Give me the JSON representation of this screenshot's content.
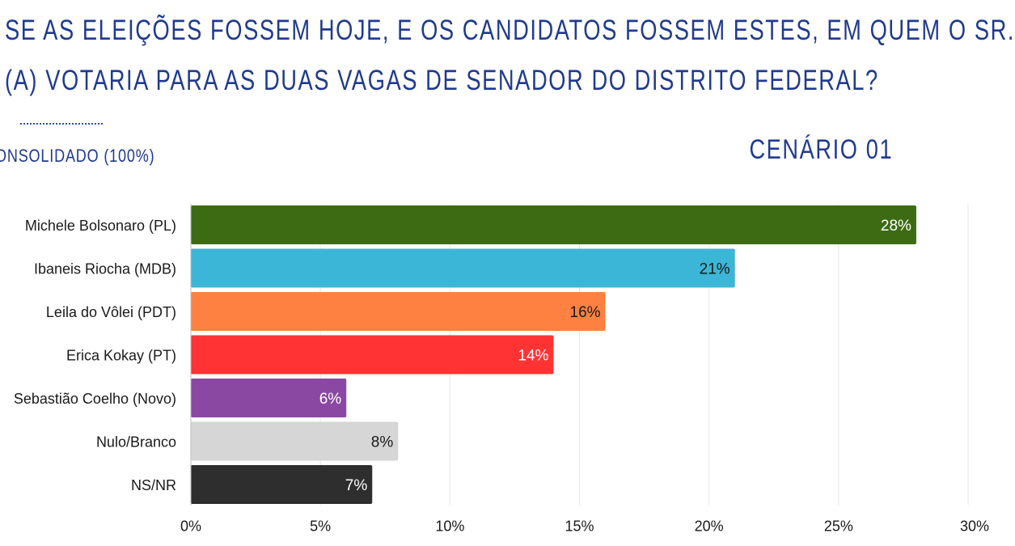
{
  "header": {
    "question_line1": "SE AS ELEIÇÕES FOSSEM HOJE, E OS CANDIDATOS FOSSEM ESTES, EM QUEM O SR.",
    "question_line2": "(A) VOTARIA PARA AS DUAS VAGAS DE SENADOR DO DISTRITO FEDERAL?",
    "subtitle": "ONSOLIDADO (100%)",
    "scenario": "CENÁRIO 01"
  },
  "chart_data": {
    "type": "bar",
    "orientation": "horizontal",
    "categories": [
      "Michele Bolsonaro (PL)",
      "Ibaneis Riocha (MDB)",
      "Leila do Vôlei (PDT)",
      "Erica Kokay (PT)",
      "Sebastião Coelho (Novo)",
      "Nulo/Branco",
      "NS/NR"
    ],
    "values": [
      28,
      21,
      16,
      14,
      6,
      8,
      7
    ],
    "value_labels": [
      "28%",
      "21%",
      "16%",
      "14%",
      "6%",
      "8%",
      "7%"
    ],
    "colors": [
      "#3d6b13",
      "#3bb6d6",
      "#ff8142",
      "#ff3333",
      "#8a48a3",
      "#d6d6d6",
      "#2e2e2e"
    ],
    "label_colors": [
      "#ffffff",
      "#1a1a1a",
      "#1a1a1a",
      "#ffffff",
      "#ffffff",
      "#1a1a1a",
      "#ffffff"
    ],
    "xlim": [
      0,
      30
    ],
    "xticks": [
      0,
      5,
      10,
      15,
      20,
      25,
      30
    ],
    "xtick_labels": [
      "0%",
      "5%",
      "10%",
      "15%",
      "20%",
      "25%",
      "30%"
    ],
    "grid": true
  }
}
